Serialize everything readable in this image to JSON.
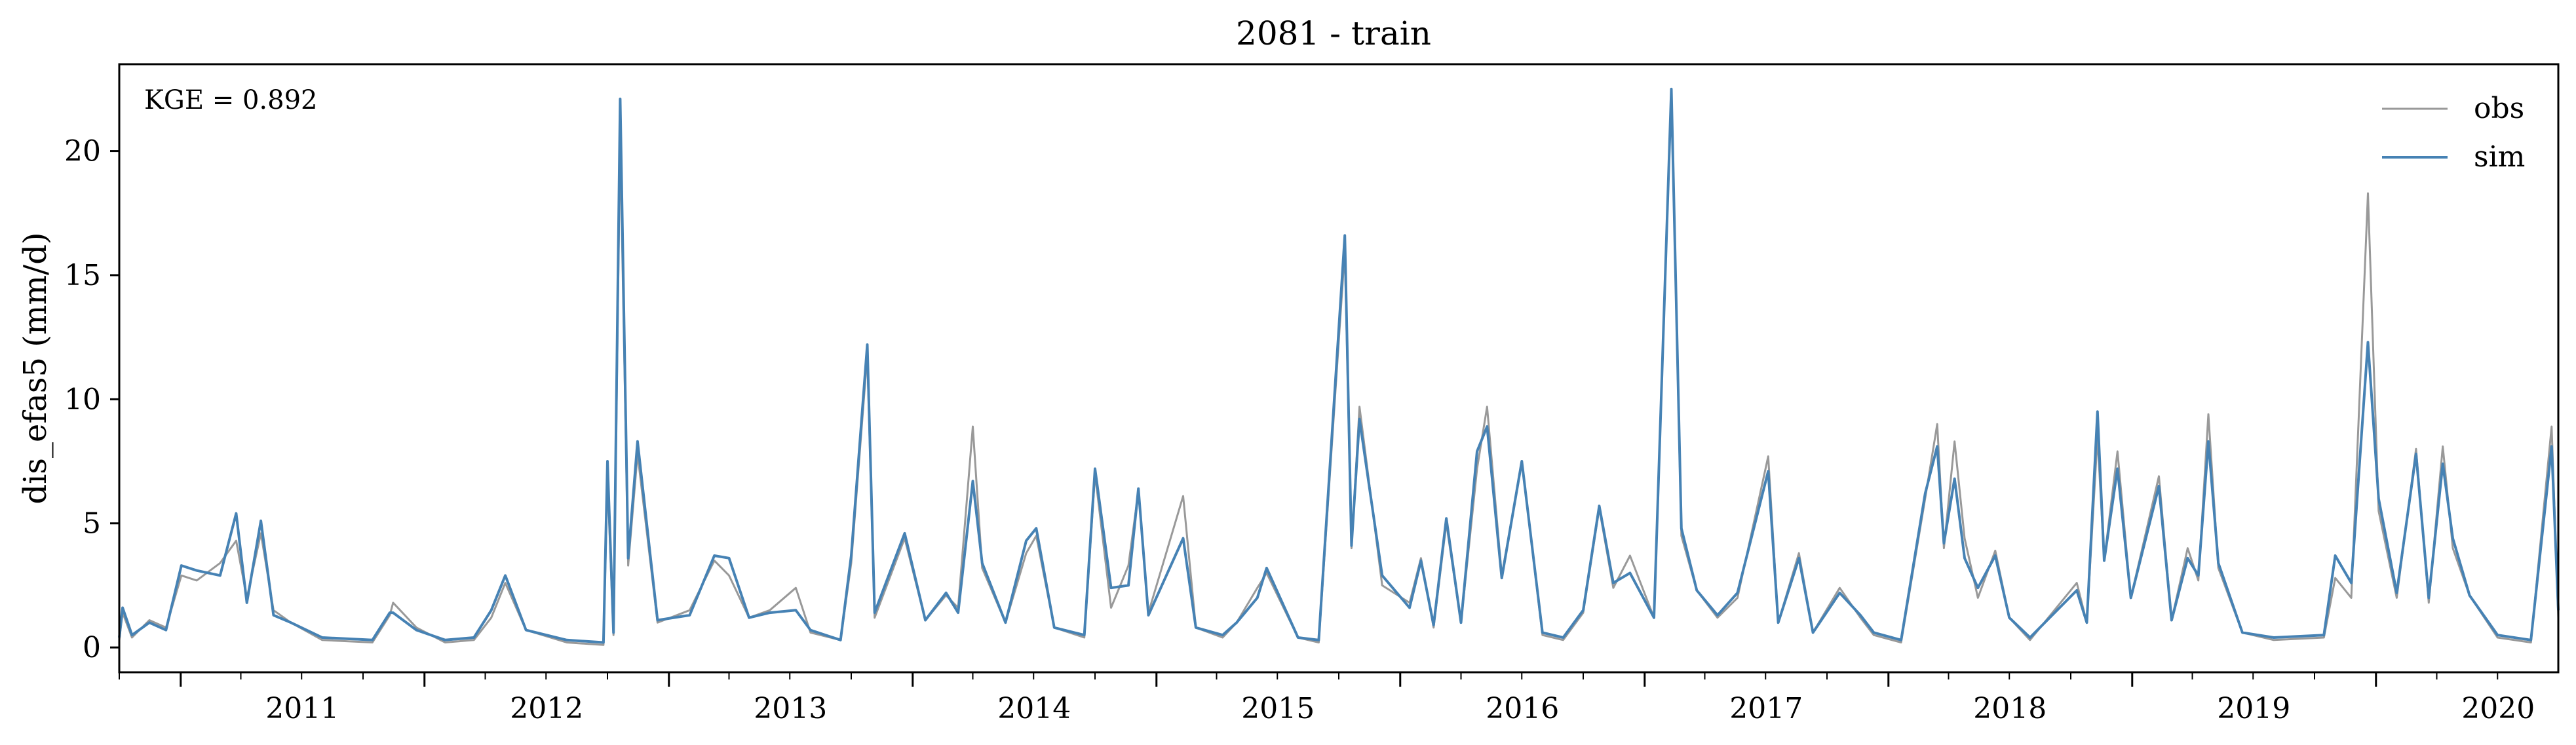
{
  "chart_data": {
    "type": "line",
    "title": "2081 - train",
    "xlabel": "",
    "ylabel": "dis_efas5 (mm/d)",
    "annotation": "KGE = 0.892",
    "x_range": [
      "2010-10-01",
      "2020-09-30"
    ],
    "x_tick_labels": [
      "2011",
      "2012",
      "2013",
      "2014",
      "2015",
      "2016",
      "2017",
      "2018",
      "2019",
      "2020"
    ],
    "ylim": [
      -1,
      23.5
    ],
    "y_ticks": [
      0,
      5,
      10,
      15,
      20
    ],
    "grid": false,
    "legend_position": "top-right",
    "series": [
      {
        "name": "obs",
        "color": "#999999",
        "points": [
          [
            "2010-10-01",
            0.3
          ],
          [
            "2010-10-06",
            1.4
          ],
          [
            "2010-10-20",
            0.4
          ],
          [
            "2010-11-15",
            1.1
          ],
          [
            "2010-12-10",
            0.8
          ],
          [
            "2011-01-02",
            2.9
          ],
          [
            "2011-01-25",
            2.7
          ],
          [
            "2011-03-01",
            3.4
          ],
          [
            "2011-03-25",
            4.3
          ],
          [
            "2011-04-10",
            2.0
          ],
          [
            "2011-05-01",
            4.6
          ],
          [
            "2011-05-20",
            1.5
          ],
          [
            "2011-06-15",
            1.0
          ],
          [
            "2011-08-01",
            0.3
          ],
          [
            "2011-10-15",
            0.2
          ],
          [
            "2011-11-10",
            1.3
          ],
          [
            "2011-11-15",
            1.8
          ],
          [
            "2011-12-20",
            0.8
          ],
          [
            "2012-02-01",
            0.2
          ],
          [
            "2012-03-15",
            0.3
          ],
          [
            "2012-04-10",
            1.2
          ],
          [
            "2012-05-01",
            2.6
          ],
          [
            "2012-06-01",
            0.7
          ],
          [
            "2012-08-01",
            0.2
          ],
          [
            "2012-09-25",
            0.1
          ],
          [
            "2012-10-01",
            6.8
          ],
          [
            "2012-10-10",
            0.5
          ],
          [
            "2012-10-20",
            20.5
          ],
          [
            "2012-11-01",
            3.3
          ],
          [
            "2012-11-15",
            7.8
          ],
          [
            "2012-12-15",
            1.0
          ],
          [
            "2013-02-01",
            1.5
          ],
          [
            "2013-03-10",
            3.5
          ],
          [
            "2013-04-01",
            2.9
          ],
          [
            "2013-05-01",
            1.2
          ],
          [
            "2013-06-01",
            1.5
          ],
          [
            "2013-07-10",
            2.4
          ],
          [
            "2013-08-01",
            0.6
          ],
          [
            "2013-09-15",
            0.3
          ],
          [
            "2013-10-01",
            3.4
          ],
          [
            "2013-10-25",
            11.8
          ],
          [
            "2013-11-05",
            1.2
          ],
          [
            "2013-12-20",
            4.4
          ],
          [
            "2014-01-20",
            1.1
          ],
          [
            "2014-02-20",
            2.1
          ],
          [
            "2014-03-10",
            1.6
          ],
          [
            "2014-04-01",
            8.9
          ],
          [
            "2014-04-15",
            3.2
          ],
          [
            "2014-05-20",
            1.0
          ],
          [
            "2014-06-20",
            3.8
          ],
          [
            "2014-07-05",
            4.5
          ],
          [
            "2014-08-01",
            0.8
          ],
          [
            "2014-09-15",
            0.4
          ],
          [
            "2014-10-01",
            7.0
          ],
          [
            "2014-10-25",
            1.6
          ],
          [
            "2014-11-20",
            3.3
          ],
          [
            "2014-12-05",
            6.3
          ],
          [
            "2014-12-20",
            1.4
          ],
          [
            "2015-02-10",
            6.1
          ],
          [
            "2015-03-01",
            0.8
          ],
          [
            "2015-04-10",
            0.4
          ],
          [
            "2015-05-01",
            1.0
          ],
          [
            "2015-06-01",
            2.4
          ],
          [
            "2015-06-15",
            3.0
          ],
          [
            "2015-08-01",
            0.4
          ],
          [
            "2015-09-01",
            0.2
          ],
          [
            "2015-10-10",
            16.0
          ],
          [
            "2015-10-20",
            4.0
          ],
          [
            "2015-11-01",
            9.7
          ],
          [
            "2015-12-05",
            2.5
          ],
          [
            "2016-01-15",
            1.8
          ],
          [
            "2016-02-01",
            3.6
          ],
          [
            "2016-02-20",
            0.8
          ],
          [
            "2016-03-10",
            5.0
          ],
          [
            "2016-04-01",
            1.0
          ],
          [
            "2016-04-25",
            7.2
          ],
          [
            "2016-05-10",
            9.7
          ],
          [
            "2016-06-01",
            2.9
          ],
          [
            "2016-07-01",
            7.5
          ],
          [
            "2016-08-01",
            0.5
          ],
          [
            "2016-09-01",
            0.3
          ],
          [
            "2016-10-01",
            1.4
          ],
          [
            "2016-10-25",
            5.6
          ],
          [
            "2016-11-15",
            2.4
          ],
          [
            "2016-12-10",
            3.7
          ],
          [
            "2017-01-15",
            1.2
          ],
          [
            "2017-02-10",
            22.4
          ],
          [
            "2017-02-25",
            4.5
          ],
          [
            "2017-03-20",
            2.3
          ],
          [
            "2017-04-20",
            1.2
          ],
          [
            "2017-05-20",
            2.0
          ],
          [
            "2017-07-05",
            7.7
          ],
          [
            "2017-07-20",
            1.0
          ],
          [
            "2017-08-20",
            3.8
          ],
          [
            "2017-09-10",
            0.6
          ],
          [
            "2017-10-20",
            2.4
          ],
          [
            "2017-11-20",
            1.2
          ],
          [
            "2017-12-10",
            0.5
          ],
          [
            "2018-01-20",
            0.2
          ],
          [
            "2018-02-25",
            6.0
          ],
          [
            "2018-03-15",
            9.0
          ],
          [
            "2018-03-25",
            4.0
          ],
          [
            "2018-04-10",
            8.3
          ],
          [
            "2018-04-25",
            4.4
          ],
          [
            "2018-05-15",
            2.0
          ],
          [
            "2018-06-10",
            3.9
          ],
          [
            "2018-07-01",
            1.2
          ],
          [
            "2018-08-01",
            0.3
          ],
          [
            "2018-10-10",
            2.6
          ],
          [
            "2018-10-25",
            1.0
          ],
          [
            "2018-11-10",
            8.5
          ],
          [
            "2018-11-20",
            3.5
          ],
          [
            "2018-12-10",
            7.9
          ],
          [
            "2018-12-30",
            2.0
          ],
          [
            "2019-02-10",
            6.9
          ],
          [
            "2019-03-01",
            1.1
          ],
          [
            "2019-03-25",
            4.0
          ],
          [
            "2019-04-10",
            2.7
          ],
          [
            "2019-04-25",
            9.4
          ],
          [
            "2019-05-10",
            3.2
          ],
          [
            "2019-06-15",
            0.6
          ],
          [
            "2019-08-01",
            0.3
          ],
          [
            "2019-10-15",
            0.4
          ],
          [
            "2019-11-01",
            2.8
          ],
          [
            "2019-11-25",
            2.0
          ],
          [
            "2019-12-20",
            18.3
          ],
          [
            "2020-01-05",
            5.5
          ],
          [
            "2020-02-01",
            2.0
          ],
          [
            "2020-03-01",
            8.0
          ],
          [
            "2020-03-20",
            1.8
          ],
          [
            "2020-04-10",
            8.1
          ],
          [
            "2020-04-25",
            4.0
          ],
          [
            "2020-05-20",
            2.1
          ],
          [
            "2020-07-01",
            0.4
          ],
          [
            "2020-08-20",
            0.2
          ],
          [
            "2020-09-20",
            8.9
          ],
          [
            "2020-09-30",
            1.2
          ]
        ]
      },
      {
        "name": "sim",
        "color": "#4682b4",
        "points": [
          [
            "2010-10-01",
            0.4
          ],
          [
            "2010-10-06",
            1.6
          ],
          [
            "2010-10-20",
            0.5
          ],
          [
            "2010-11-15",
            1.0
          ],
          [
            "2010-12-10",
            0.7
          ],
          [
            "2011-01-02",
            3.3
          ],
          [
            "2011-01-25",
            3.1
          ],
          [
            "2011-03-01",
            2.9
          ],
          [
            "2011-03-25",
            5.4
          ],
          [
            "2011-04-10",
            1.8
          ],
          [
            "2011-05-01",
            5.1
          ],
          [
            "2011-05-20",
            1.3
          ],
          [
            "2011-06-15",
            1.0
          ],
          [
            "2011-08-01",
            0.4
          ],
          [
            "2011-10-15",
            0.3
          ],
          [
            "2011-11-10",
            1.4
          ],
          [
            "2011-11-15",
            1.4
          ],
          [
            "2011-12-20",
            0.7
          ],
          [
            "2012-02-01",
            0.3
          ],
          [
            "2012-03-15",
            0.4
          ],
          [
            "2012-04-10",
            1.5
          ],
          [
            "2012-05-01",
            2.9
          ],
          [
            "2012-06-01",
            0.7
          ],
          [
            "2012-08-01",
            0.3
          ],
          [
            "2012-09-25",
            0.2
          ],
          [
            "2012-10-01",
            7.5
          ],
          [
            "2012-10-10",
            0.6
          ],
          [
            "2012-10-20",
            22.1
          ],
          [
            "2012-11-01",
            3.6
          ],
          [
            "2012-11-15",
            8.3
          ],
          [
            "2012-12-15",
            1.1
          ],
          [
            "2013-02-01",
            1.3
          ],
          [
            "2013-03-10",
            3.7
          ],
          [
            "2013-04-01",
            3.6
          ],
          [
            "2013-05-01",
            1.2
          ],
          [
            "2013-06-01",
            1.4
          ],
          [
            "2013-07-10",
            1.5
          ],
          [
            "2013-08-01",
            0.7
          ],
          [
            "2013-09-15",
            0.3
          ],
          [
            "2013-10-01",
            3.7
          ],
          [
            "2013-10-25",
            12.2
          ],
          [
            "2013-11-05",
            1.4
          ],
          [
            "2013-12-20",
            4.6
          ],
          [
            "2014-01-20",
            1.1
          ],
          [
            "2014-02-20",
            2.2
          ],
          [
            "2014-03-10",
            1.4
          ],
          [
            "2014-04-01",
            6.7
          ],
          [
            "2014-04-15",
            3.4
          ],
          [
            "2014-05-20",
            1.0
          ],
          [
            "2014-06-20",
            4.3
          ],
          [
            "2014-07-05",
            4.8
          ],
          [
            "2014-08-01",
            0.8
          ],
          [
            "2014-09-15",
            0.5
          ],
          [
            "2014-10-01",
            7.2
          ],
          [
            "2014-10-25",
            2.4
          ],
          [
            "2014-11-20",
            2.5
          ],
          [
            "2014-12-05",
            6.4
          ],
          [
            "2014-12-20",
            1.3
          ],
          [
            "2015-02-10",
            4.4
          ],
          [
            "2015-03-01",
            0.8
          ],
          [
            "2015-04-10",
            0.5
          ],
          [
            "2015-05-01",
            1.0
          ],
          [
            "2015-06-01",
            2.0
          ],
          [
            "2015-06-15",
            3.2
          ],
          [
            "2015-08-01",
            0.4
          ],
          [
            "2015-09-01",
            0.3
          ],
          [
            "2015-10-10",
            16.6
          ],
          [
            "2015-10-20",
            4.1
          ],
          [
            "2015-11-01",
            9.2
          ],
          [
            "2015-12-05",
            2.9
          ],
          [
            "2016-01-15",
            1.6
          ],
          [
            "2016-02-01",
            3.5
          ],
          [
            "2016-02-20",
            0.9
          ],
          [
            "2016-03-10",
            5.2
          ],
          [
            "2016-04-01",
            1.0
          ],
          [
            "2016-04-25",
            7.9
          ],
          [
            "2016-05-10",
            8.9
          ],
          [
            "2016-06-01",
            2.8
          ],
          [
            "2016-07-01",
            7.5
          ],
          [
            "2016-08-01",
            0.6
          ],
          [
            "2016-09-01",
            0.4
          ],
          [
            "2016-10-01",
            1.5
          ],
          [
            "2016-10-25",
            5.7
          ],
          [
            "2016-11-15",
            2.6
          ],
          [
            "2016-12-10",
            3.0
          ],
          [
            "2017-01-15",
            1.2
          ],
          [
            "2017-02-10",
            22.5
          ],
          [
            "2017-02-25",
            4.8
          ],
          [
            "2017-03-20",
            2.3
          ],
          [
            "2017-04-20",
            1.3
          ],
          [
            "2017-05-20",
            2.2
          ],
          [
            "2017-07-05",
            7.1
          ],
          [
            "2017-07-20",
            1.0
          ],
          [
            "2017-08-20",
            3.6
          ],
          [
            "2017-09-10",
            0.6
          ],
          [
            "2017-10-20",
            2.2
          ],
          [
            "2017-11-20",
            1.3
          ],
          [
            "2017-12-10",
            0.6
          ],
          [
            "2018-01-20",
            0.3
          ],
          [
            "2018-02-25",
            6.2
          ],
          [
            "2018-03-15",
            8.1
          ],
          [
            "2018-03-25",
            4.2
          ],
          [
            "2018-04-10",
            6.8
          ],
          [
            "2018-04-25",
            3.6
          ],
          [
            "2018-05-15",
            2.4
          ],
          [
            "2018-06-10",
            3.7
          ],
          [
            "2018-07-01",
            1.2
          ],
          [
            "2018-08-01",
            0.4
          ],
          [
            "2018-10-10",
            2.3
          ],
          [
            "2018-10-25",
            1.0
          ],
          [
            "2018-11-10",
            9.5
          ],
          [
            "2018-11-20",
            3.5
          ],
          [
            "2018-12-10",
            7.2
          ],
          [
            "2018-12-30",
            2.0
          ],
          [
            "2019-02-10",
            6.5
          ],
          [
            "2019-03-01",
            1.1
          ],
          [
            "2019-03-25",
            3.6
          ],
          [
            "2019-04-10",
            2.9
          ],
          [
            "2019-04-25",
            8.3
          ],
          [
            "2019-05-10",
            3.4
          ],
          [
            "2019-06-15",
            0.6
          ],
          [
            "2019-08-01",
            0.4
          ],
          [
            "2019-10-15",
            0.5
          ],
          [
            "2019-11-01",
            3.7
          ],
          [
            "2019-11-25",
            2.6
          ],
          [
            "2019-12-20",
            12.3
          ],
          [
            "2020-01-05",
            6.0
          ],
          [
            "2020-02-01",
            2.2
          ],
          [
            "2020-03-01",
            7.8
          ],
          [
            "2020-03-20",
            2.0
          ],
          [
            "2020-04-10",
            7.4
          ],
          [
            "2020-04-25",
            4.4
          ],
          [
            "2020-05-20",
            2.1
          ],
          [
            "2020-07-01",
            0.5
          ],
          [
            "2020-08-20",
            0.3
          ],
          [
            "2020-09-20",
            8.1
          ],
          [
            "2020-09-30",
            1.5
          ]
        ]
      }
    ]
  }
}
